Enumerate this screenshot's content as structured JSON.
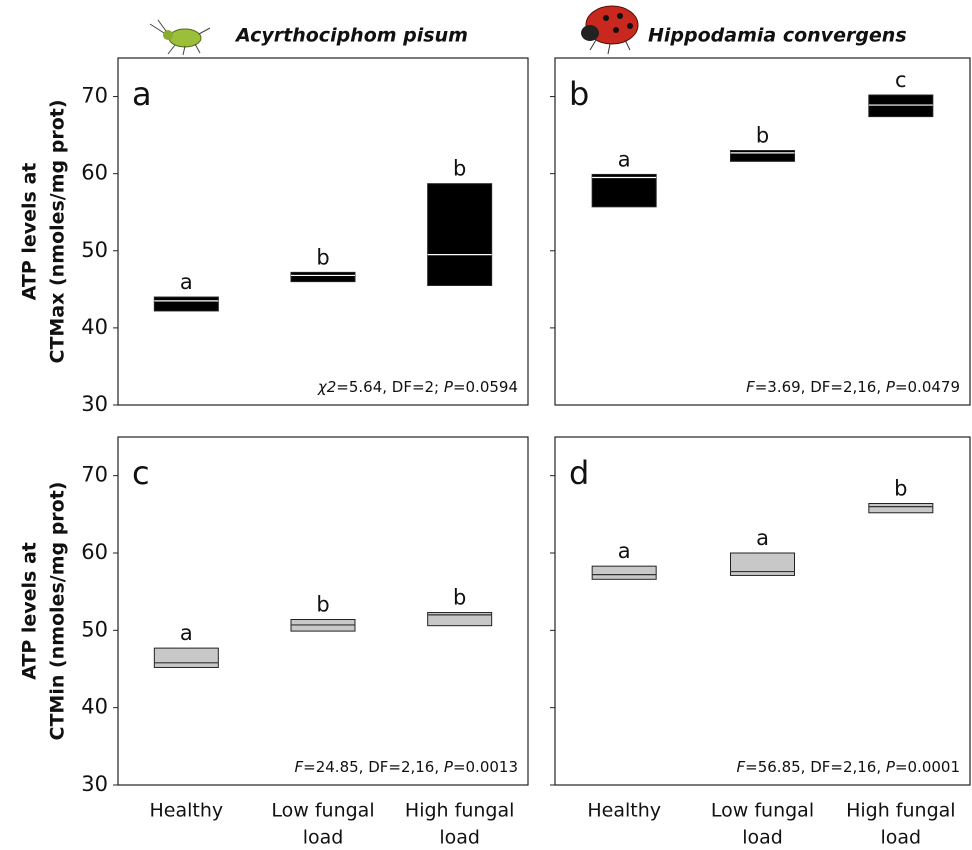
{
  "chart_data": [
    {
      "type": "box",
      "title": "Acyrthociphom pisum",
      "panel_label": "a",
      "y_label": [
        "ATP levels at",
        "CTMax (nmoles/mg prot)"
      ],
      "q1": [
        42.2,
        46.0,
        45.5
      ],
      "median": [
        43.5,
        46.8,
        49.5
      ],
      "q3": [
        44.0,
        47.2,
        58.7
      ],
      "group_labels": [
        "a",
        "b",
        "b"
      ],
      "color": "#000000",
      "median_color": "#ffffff",
      "ylim": [
        30,
        75
      ],
      "yticks": [
        30,
        40,
        50,
        60,
        70
      ],
      "ytick_labels": true,
      "annotation": [
        {
          "text": "χ2",
          "italic": true
        },
        {
          "text": "=5.64, DF=2; ",
          "italic": false
        },
        {
          "text": "P",
          "italic": true
        },
        {
          "text": "=0.0594",
          "italic": false
        }
      ]
    },
    {
      "type": "box",
      "title": "Hippodamia convergens",
      "panel_label": "b",
      "q1": [
        55.7,
        61.6,
        67.4
      ],
      "median": [
        59.5,
        62.7,
        68.9
      ],
      "q3": [
        59.9,
        63.0,
        70.2
      ],
      "group_labels": [
        "a",
        "b",
        "c"
      ],
      "color": "#000000",
      "median_color": "#ffffff",
      "ylim": [
        30,
        75
      ],
      "yticks": [
        40,
        50,
        60,
        70
      ],
      "ytick_labels": false,
      "annotation": [
        {
          "text": "F",
          "italic": true
        },
        {
          "text": "=3.69, DF=2,16, ",
          "italic": false
        },
        {
          "text": "P",
          "italic": true
        },
        {
          "text": "=0.0479",
          "italic": false
        }
      ]
    },
    {
      "type": "box",
      "panel_label": "c",
      "y_label": [
        "ATP levels at",
        "CTMin (nmoles/mg prot)"
      ],
      "categories": [
        [
          "Healthy"
        ],
        [
          "Low fungal",
          "load"
        ],
        [
          "High fungal",
          "load"
        ]
      ],
      "q1": [
        45.2,
        49.9,
        50.6
      ],
      "median": [
        45.8,
        50.7,
        52.0
      ],
      "q3": [
        47.7,
        51.4,
        52.3
      ],
      "group_labels": [
        "a",
        "b",
        "b"
      ],
      "color": "#c8c8c8",
      "median_color": "#333333",
      "ylim": [
        30,
        75
      ],
      "yticks": [
        30,
        40,
        50,
        60,
        70
      ],
      "ytick_labels": true,
      "annotation": [
        {
          "text": "F",
          "italic": true
        },
        {
          "text": "=24.85, DF=2,16, ",
          "italic": false
        },
        {
          "text": "P",
          "italic": true
        },
        {
          "text": "=0.0013",
          "italic": false
        }
      ]
    },
    {
      "type": "box",
      "panel_label": "d",
      "categories": [
        [
          "Healthy"
        ],
        [
          "Low fungal",
          "load"
        ],
        [
          "High fungal",
          "load"
        ]
      ],
      "q1": [
        56.6,
        57.1,
        65.2
      ],
      "median": [
        57.2,
        57.6,
        66.0
      ],
      "q3": [
        58.3,
        60.0,
        66.4
      ],
      "group_labels": [
        "a",
        "a",
        "b"
      ],
      "color": "#c8c8c8",
      "median_color": "#333333",
      "ylim": [
        30,
        75
      ],
      "yticks": [
        30,
        40,
        50,
        60,
        70
      ],
      "ytick_labels": false,
      "annotation": [
        {
          "text": "F",
          "italic": true
        },
        {
          "text": "=56.85, DF=2,16, ",
          "italic": false
        },
        {
          "text": "P",
          "italic": true
        },
        {
          "text": "=0.0001",
          "italic": false
        }
      ]
    }
  ]
}
